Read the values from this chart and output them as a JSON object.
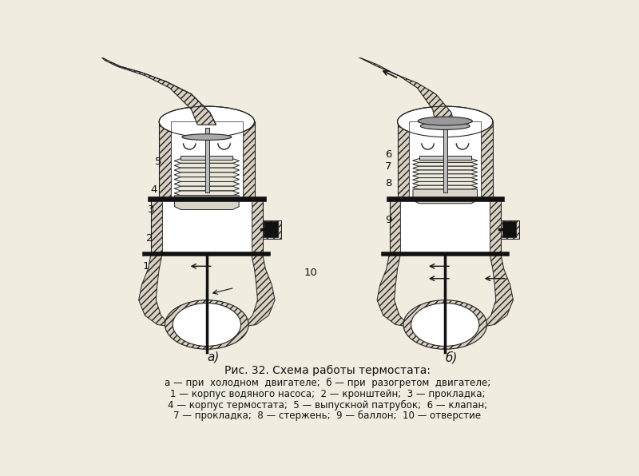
{
  "title": "Рис. 32. Схема работы термостата:",
  "caption_line1": "а — при  холодном  двигателе;  б — при  разогретом  двигателе;",
  "caption_line2": "1 — корпус водяного насоса;  2 — кронштейн;  3 — прокладка;",
  "caption_line3": "4 — корпус термостата;  5 — выпускной патрубок;  6 — клапан;",
  "caption_line4": "7 — прокладка;  8 — стержень;  9 — баллон;  10 — отверстие",
  "label_a": "а)",
  "label_b": "б)",
  "bg_color": "#f0ece0",
  "fig_width": 8.0,
  "fig_height": 5.96
}
